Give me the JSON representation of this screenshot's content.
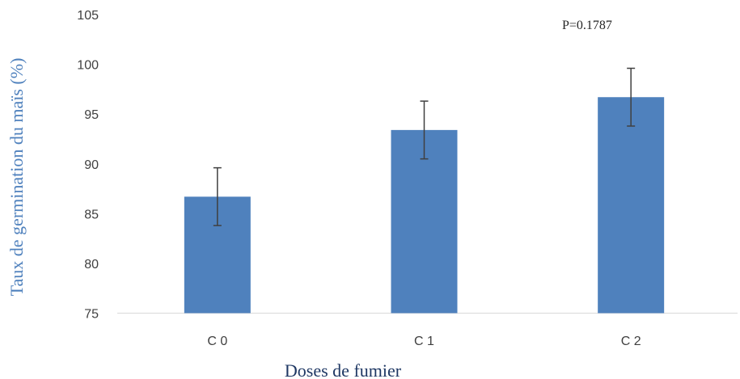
{
  "colors": {
    "bar": "#4f81bd",
    "error_bar": "#404040",
    "axis_line": "#d9d9d9",
    "ylabel": "#4f81bd",
    "xlabel": "#1f3864"
  },
  "chart_data": {
    "type": "bar",
    "categories": [
      "C 0",
      "C 1",
      "C 2"
    ],
    "values": [
      86.7,
      93.4,
      96.7
    ],
    "error": [
      2.9,
      2.9,
      2.9
    ],
    "xlabel": "Doses de fumier",
    "ylabel": "Taux de germination du maïs (%)",
    "ylim": [
      75,
      105
    ],
    "yticks": [
      75,
      80,
      85,
      90,
      95,
      100,
      105
    ],
    "grid": false,
    "annotation": "P=0.1787"
  }
}
